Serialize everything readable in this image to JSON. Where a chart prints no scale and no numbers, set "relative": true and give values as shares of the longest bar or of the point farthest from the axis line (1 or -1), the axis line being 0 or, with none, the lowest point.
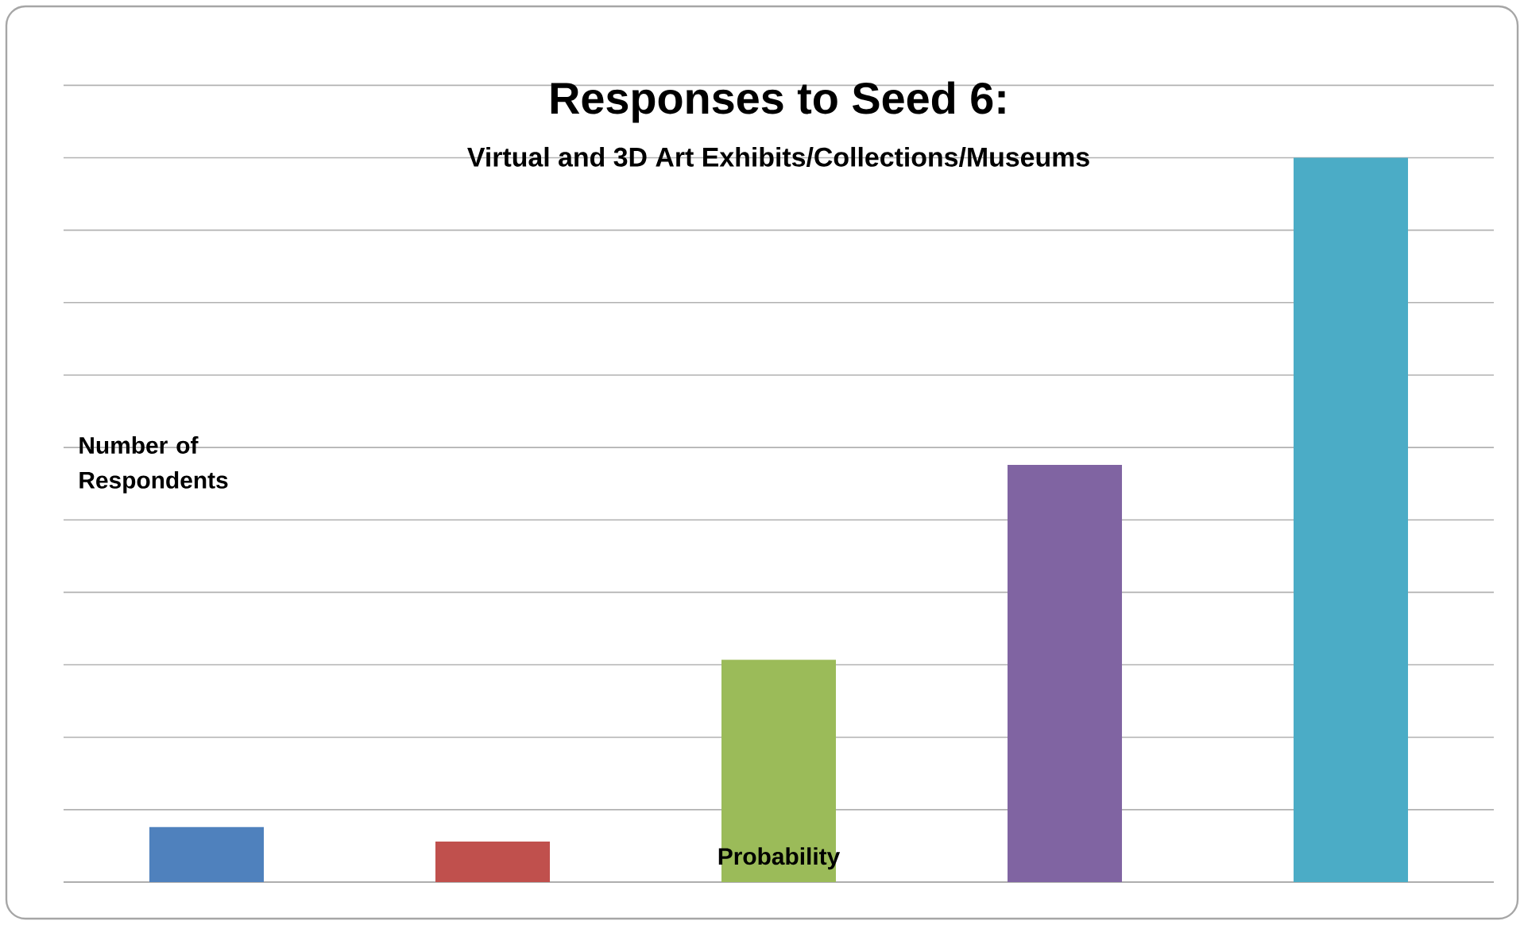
{
  "chart_data": {
    "type": "bar",
    "title": "Responses to Seed 6:",
    "subtitle": "Virtual and 3D Art Exhibits/Collections/Museums",
    "ylabel": "Number of Respondents",
    "xlabel": "Probability",
    "categories": [
      null,
      null,
      null,
      null,
      null
    ],
    "values": [
      0.076,
      0.056,
      0.307,
      0.576,
      1
    ],
    "colors": [
      "#4f81bd",
      "#c0504d",
      "#9bbb59",
      "#8064a2",
      "#4bacc6"
    ],
    "relative": true,
    "grid": "y"
  }
}
